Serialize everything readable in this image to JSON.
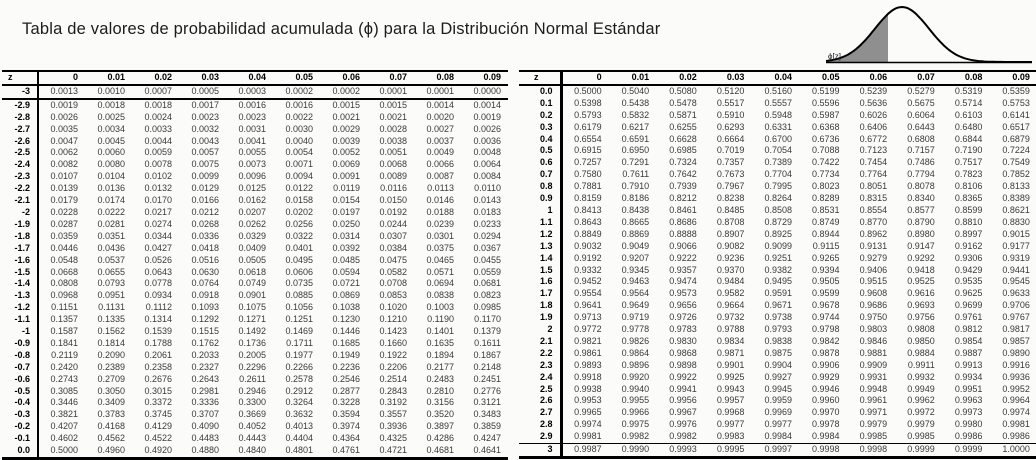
{
  "title": "Tabla de valores de probabilidad acumulada (ϕ) para la Distribución Normal Estándar",
  "curve": {
    "label": "ϕ[z]",
    "shade_color": "#8f8f8f"
  },
  "columns": [
    "z",
    "0",
    "0.01",
    "0.02",
    "0.03",
    "0.04",
    "0.05",
    "0.06",
    "0.07",
    "0.08",
    "0.09"
  ],
  "negative_table": {
    "rows": [
      [
        "-3",
        "0.0013",
        "0.0010",
        "0.0007",
        "0.0005",
        "0.0003",
        "0.0002",
        "0.0002",
        "0.0001",
        "0.0001",
        "0.0000"
      ],
      [
        "-2.9",
        "0.0019",
        "0.0018",
        "0.0018",
        "0.0017",
        "0.0016",
        "0.0016",
        "0.0015",
        "0.0015",
        "0.0014",
        "0.0014"
      ],
      [
        "-2.8",
        "0.0026",
        "0.0025",
        "0.0024",
        "0.0023",
        "0.0023",
        "0.0022",
        "0.0021",
        "0.0021",
        "0.0020",
        "0.0019"
      ],
      [
        "-2.7",
        "0.0035",
        "0.0034",
        "0.0033",
        "0.0032",
        "0.0031",
        "0.0030",
        "0.0029",
        "0.0028",
        "0.0027",
        "0.0026"
      ],
      [
        "-2.6",
        "0.0047",
        "0.0045",
        "0.0044",
        "0.0043",
        "0.0041",
        "0.0040",
        "0.0039",
        "0.0038",
        "0.0037",
        "0.0036"
      ],
      [
        "-2.5",
        "0.0062",
        "0.0060",
        "0.0059",
        "0.0057",
        "0.0055",
        "0.0054",
        "0.0052",
        "0.0051",
        "0.0049",
        "0.0048"
      ],
      [
        "-2.4",
        "0.0082",
        "0.0080",
        "0.0078",
        "0.0075",
        "0.0073",
        "0.0071",
        "0.0069",
        "0.0068",
        "0.0066",
        "0.0064"
      ],
      [
        "-2.3",
        "0.0107",
        "0.0104",
        "0.0102",
        "0.0099",
        "0.0096",
        "0.0094",
        "0.0091",
        "0.0089",
        "0.0087",
        "0.0084"
      ],
      [
        "-2.2",
        "0.0139",
        "0.0136",
        "0.0132",
        "0.0129",
        "0.0125",
        "0.0122",
        "0.0119",
        "0.0116",
        "0.0113",
        "0.0110"
      ],
      [
        "-2.1",
        "0.0179",
        "0.0174",
        "0.0170",
        "0.0166",
        "0.0162",
        "0.0158",
        "0.0154",
        "0.0150",
        "0.0146",
        "0.0143"
      ],
      [
        "-2",
        "0.0228",
        "0.0222",
        "0.0217",
        "0.0212",
        "0.0207",
        "0.0202",
        "0.0197",
        "0.0192",
        "0.0188",
        "0.0183"
      ],
      [
        "-1.9",
        "0.0287",
        "0.0281",
        "0.0274",
        "0.0268",
        "0.0262",
        "0.0256",
        "0.0250",
        "0.0244",
        "0.0239",
        "0.0233"
      ],
      [
        "-1.8",
        "0.0359",
        "0.0351",
        "0.0344",
        "0.0336",
        "0.0329",
        "0.0322",
        "0.0314",
        "0.0307",
        "0.0301",
        "0.0294"
      ],
      [
        "-1.7",
        "0.0446",
        "0.0436",
        "0.0427",
        "0.0418",
        "0.0409",
        "0.0401",
        "0.0392",
        "0.0384",
        "0.0375",
        "0.0367"
      ],
      [
        "-1.6",
        "0.0548",
        "0.0537",
        "0.0526",
        "0.0516",
        "0.0505",
        "0.0495",
        "0.0485",
        "0.0475",
        "0.0465",
        "0.0455"
      ],
      [
        "-1.5",
        "0.0668",
        "0.0655",
        "0.0643",
        "0.0630",
        "0.0618",
        "0.0606",
        "0.0594",
        "0.0582",
        "0.0571",
        "0.0559"
      ],
      [
        "-1.4",
        "0.0808",
        "0.0793",
        "0.0778",
        "0.0764",
        "0.0749",
        "0.0735",
        "0.0721",
        "0.0708",
        "0.0694",
        "0.0681"
      ],
      [
        "-1.3",
        "0.0968",
        "0.0951",
        "0.0934",
        "0.0918",
        "0.0901",
        "0.0885",
        "0.0869",
        "0.0853",
        "0.0838",
        "0.0823"
      ],
      [
        "-1.2",
        "0.1151",
        "0.1131",
        "0.1112",
        "0.1093",
        "0.1075",
        "0.1056",
        "0.1038",
        "0.1020",
        "0.1003",
        "0.0985"
      ],
      [
        "-1.1",
        "0.1357",
        "0.1335",
        "0.1314",
        "0.1292",
        "0.1271",
        "0.1251",
        "0.1230",
        "0.1210",
        "0.1190",
        "0.1170"
      ],
      [
        "-1",
        "0.1587",
        "0.1562",
        "0.1539",
        "0.1515",
        "0.1492",
        "0.1469",
        "0.1446",
        "0.1423",
        "0.1401",
        "0.1379"
      ],
      [
        "-0.9",
        "0.1841",
        "0.1814",
        "0.1788",
        "0.1762",
        "0.1736",
        "0.1711",
        "0.1685",
        "0.1660",
        "0.1635",
        "0.1611"
      ],
      [
        "-0.8",
        "0.2119",
        "0.2090",
        "0.2061",
        "0.2033",
        "0.2005",
        "0.1977",
        "0.1949",
        "0.1922",
        "0.1894",
        "0.1867"
      ],
      [
        "-0.7",
        "0.2420",
        "0.2389",
        "0.2358",
        "0.2327",
        "0.2296",
        "0.2266",
        "0.2236",
        "0.2206",
        "0.2177",
        "0.2148"
      ],
      [
        "-0.6",
        "0.2743",
        "0.2709",
        "0.2676",
        "0.2643",
        "0.2611",
        "0.2578",
        "0.2546",
        "0.2514",
        "0.2483",
        "0.2451"
      ],
      [
        "-0.5",
        "0.3085",
        "0.3050",
        "0.3015",
        "0.2981",
        "0.2946",
        "0.2912",
        "0.2877",
        "0.2843",
        "0.2810",
        "0.2776"
      ],
      [
        "-0.4",
        "0.3446",
        "0.3409",
        "0.3372",
        "0.3336",
        "0.3300",
        "0.3264",
        "0.3228",
        "0.3192",
        "0.3156",
        "0.3121"
      ],
      [
        "-0.3",
        "0.3821",
        "0.3783",
        "0.3745",
        "0.3707",
        "0.3669",
        "0.3632",
        "0.3594",
        "0.3557",
        "0.3520",
        "0.3483"
      ],
      [
        "-0.2",
        "0.4207",
        "0.4168",
        "0.4129",
        "0.4090",
        "0.4052",
        "0.4013",
        "0.3974",
        "0.3936",
        "0.3897",
        "0.3859"
      ],
      [
        "-0.1",
        "0.4602",
        "0.4562",
        "0.4522",
        "0.4483",
        "0.4443",
        "0.4404",
        "0.4364",
        "0.4325",
        "0.4286",
        "0.4247"
      ],
      [
        "0.0",
        "0.5000",
        "0.4960",
        "0.4920",
        "0.4880",
        "0.4840",
        "0.4801",
        "0.4761",
        "0.4721",
        "0.4681",
        "0.4641"
      ]
    ]
  },
  "positive_table": {
    "rows": [
      [
        "0.0",
        "0.5000",
        "0.5040",
        "0.5080",
        "0.5120",
        "0.5160",
        "0.5199",
        "0.5239",
        "0.5279",
        "0.5319",
        "0.5359"
      ],
      [
        "0.1",
        "0.5398",
        "0.5438",
        "0.5478",
        "0.5517",
        "0.5557",
        "0.5596",
        "0.5636",
        "0.5675",
        "0.5714",
        "0.5753"
      ],
      [
        "0.2",
        "0.5793",
        "0.5832",
        "0.5871",
        "0.5910",
        "0.5948",
        "0.5987",
        "0.6026",
        "0.6064",
        "0.6103",
        "0.6141"
      ],
      [
        "0.3",
        "0.6179",
        "0.6217",
        "0.6255",
        "0.6293",
        "0.6331",
        "0.6368",
        "0.6406",
        "0.6443",
        "0.6480",
        "0.6517"
      ],
      [
        "0.4",
        "0.6554",
        "0.6591",
        "0.6628",
        "0.6664",
        "0.6700",
        "0.6736",
        "0.6772",
        "0.6808",
        "0.6844",
        "0.6879"
      ],
      [
        "0.5",
        "0.6915",
        "0.6950",
        "0.6985",
        "0.7019",
        "0.7054",
        "0.7088",
        "0.7123",
        "0.7157",
        "0.7190",
        "0.7224"
      ],
      [
        "0.6",
        "0.7257",
        "0.7291",
        "0.7324",
        "0.7357",
        "0.7389",
        "0.7422",
        "0.7454",
        "0.7486",
        "0.7517",
        "0.7549"
      ],
      [
        "0.7",
        "0.7580",
        "0.7611",
        "0.7642",
        "0.7673",
        "0.7704",
        "0.7734",
        "0.7764",
        "0.7794",
        "0.7823",
        "0.7852"
      ],
      [
        "0.8",
        "0.7881",
        "0.7910",
        "0.7939",
        "0.7967",
        "0.7995",
        "0.8023",
        "0.8051",
        "0.8078",
        "0.8106",
        "0.8133"
      ],
      [
        "0.9",
        "0.8159",
        "0.8186",
        "0.8212",
        "0.8238",
        "0.8264",
        "0.8289",
        "0.8315",
        "0.8340",
        "0.8365",
        "0.8389"
      ],
      [
        "1",
        "0.8413",
        "0.8438",
        "0.8461",
        "0.8485",
        "0.8508",
        "0.8531",
        "0.8554",
        "0.8577",
        "0.8599",
        "0.8621"
      ],
      [
        "1.1",
        "0.8643",
        "0.8665",
        "0.8686",
        "0.8708",
        "0.8729",
        "0.8749",
        "0.8770",
        "0.8790",
        "0.8810",
        "0.8830"
      ],
      [
        "1.2",
        "0.8849",
        "0.8869",
        "0.8888",
        "0.8907",
        "0.8925",
        "0.8944",
        "0.8962",
        "0.8980",
        "0.8997",
        "0.9015"
      ],
      [
        "1.3",
        "0.9032",
        "0.9049",
        "0.9066",
        "0.9082",
        "0.9099",
        "0.9115",
        "0.9131",
        "0.9147",
        "0.9162",
        "0.9177"
      ],
      [
        "1.4",
        "0.9192",
        "0.9207",
        "0.9222",
        "0.9236",
        "0.9251",
        "0.9265",
        "0.9279",
        "0.9292",
        "0.9306",
        "0.9319"
      ],
      [
        "1.5",
        "0.9332",
        "0.9345",
        "0.9357",
        "0.9370",
        "0.9382",
        "0.9394",
        "0.9406",
        "0.9418",
        "0.9429",
        "0.9441"
      ],
      [
        "1.6",
        "0.9452",
        "0.9463",
        "0.9474",
        "0.9484",
        "0.9495",
        "0.9505",
        "0.9515",
        "0.9525",
        "0.9535",
        "0.9545"
      ],
      [
        "1.7",
        "0.9554",
        "0.9564",
        "0.9573",
        "0.9582",
        "0.9591",
        "0.9599",
        "0.9608",
        "0.9616",
        "0.9625",
        "0.9633"
      ],
      [
        "1.8",
        "0.9641",
        "0.9649",
        "0.9656",
        "0.9664",
        "0.9671",
        "0.9678",
        "0.9686",
        "0.9693",
        "0.9699",
        "0.9706"
      ],
      [
        "1.9",
        "0.9713",
        "0.9719",
        "0.9726",
        "0.9732",
        "0.9738",
        "0.9744",
        "0.9750",
        "0.9756",
        "0.9761",
        "0.9767"
      ],
      [
        "2",
        "0.9772",
        "0.9778",
        "0.9783",
        "0.9788",
        "0.9793",
        "0.9798",
        "0.9803",
        "0.9808",
        "0.9812",
        "0.9817"
      ],
      [
        "2.1",
        "0.9821",
        "0.9826",
        "0.9830",
        "0.9834",
        "0.9838",
        "0.9842",
        "0.9846",
        "0.9850",
        "0.9854",
        "0.9857"
      ],
      [
        "2.2",
        "0.9861",
        "0.9864",
        "0.9868",
        "0.9871",
        "0.9875",
        "0.9878",
        "0.9881",
        "0.9884",
        "0.9887",
        "0.9890"
      ],
      [
        "2.3",
        "0.9893",
        "0.9896",
        "0.9898",
        "0.9901",
        "0.9904",
        "0.9906",
        "0.9909",
        "0.9911",
        "0.9913",
        "0.9916"
      ],
      [
        "2.4",
        "0.9918",
        "0.9920",
        "0.9922",
        "0.9925",
        "0.9927",
        "0.9929",
        "0.9931",
        "0.9932",
        "0.9934",
        "0.9936"
      ],
      [
        "2.5",
        "0.9938",
        "0.9940",
        "0.9941",
        "0.9943",
        "0.9945",
        "0.9946",
        "0.9948",
        "0.9949",
        "0.9951",
        "0.9952"
      ],
      [
        "2.6",
        "0.9953",
        "0.9955",
        "0.9956",
        "0.9957",
        "0.9959",
        "0.9960",
        "0.9961",
        "0.9962",
        "0.9963",
        "0.9964"
      ],
      [
        "2.7",
        "0.9965",
        "0.9966",
        "0.9967",
        "0.9968",
        "0.9969",
        "0.9970",
        "0.9971",
        "0.9972",
        "0.9973",
        "0.9974"
      ],
      [
        "2.8",
        "0.9974",
        "0.9975",
        "0.9976",
        "0.9977",
        "0.9977",
        "0.9978",
        "0.9979",
        "0.9979",
        "0.9980",
        "0.9981"
      ],
      [
        "2.9",
        "0.9981",
        "0.9982",
        "0.9982",
        "0.9983",
        "0.9984",
        "0.9984",
        "0.9985",
        "0.9985",
        "0.9986",
        "0.9986"
      ],
      [
        "3",
        "0.9987",
        "0.9990",
        "0.9993",
        "0.9995",
        "0.9997",
        "0.9998",
        "0.9998",
        "0.9999",
        "0.9999",
        "1.0000"
      ]
    ]
  }
}
